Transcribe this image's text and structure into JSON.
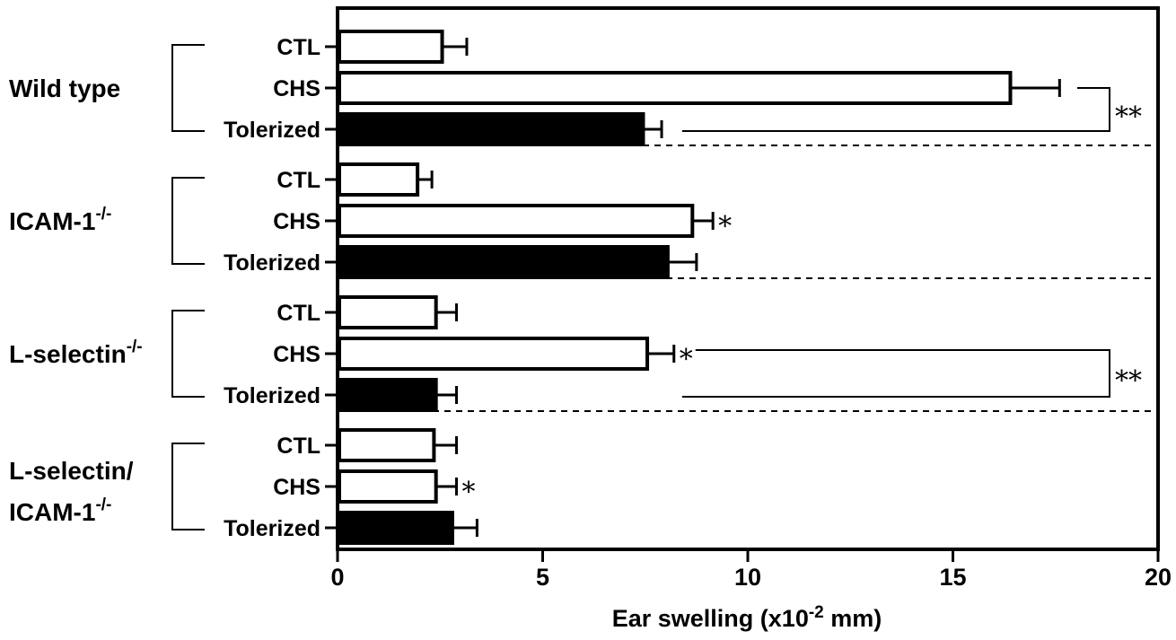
{
  "chart_data": {
    "type": "bar",
    "orientation": "horizontal",
    "xlabel_main": "Ear swelling (x10",
    "xlabel_exp": "-2",
    "xlabel_tail": " mm)",
    "xlim": [
      0,
      20
    ],
    "xticks": [
      "0",
      "5",
      "10",
      "15",
      "20"
    ],
    "xtick_values": [
      0,
      5,
      10,
      15,
      20
    ],
    "grid": false,
    "colors": {
      "CTL": "#ffffff",
      "CHS": "#ffffff",
      "Tolerized": "#000000",
      "stroke": "#000000"
    },
    "groups": [
      {
        "label_main": "Wild type",
        "label_sup": "",
        "label_line2": "",
        "label_line2_sup": "",
        "bars": [
          {
            "condition": "CTL",
            "value": 2.55,
            "error": 0.6,
            "sig": ""
          },
          {
            "condition": "CHS",
            "value": 16.4,
            "error": 1.2,
            "sig": ""
          },
          {
            "condition": "Tolerized",
            "value": 7.45,
            "error": 0.45,
            "sig": ""
          }
        ],
        "bracket": {
          "from": "CHS",
          "to": "Tolerized",
          "label": "**"
        }
      },
      {
        "label_main": "ICAM-1",
        "label_sup": "-/-",
        "label_line2": "",
        "label_line2_sup": "",
        "bars": [
          {
            "condition": "CTL",
            "value": 1.95,
            "error": 0.35,
            "sig": ""
          },
          {
            "condition": "CHS",
            "value": 8.65,
            "error": 0.5,
            "sig": "*"
          },
          {
            "condition": "Tolerized",
            "value": 8.05,
            "error": 0.7,
            "sig": ""
          }
        ],
        "bracket": null
      },
      {
        "label_main": "L-selectin",
        "label_sup": "-/-",
        "label_line2": "",
        "label_line2_sup": "",
        "bars": [
          {
            "condition": "CTL",
            "value": 2.4,
            "error": 0.5,
            "sig": ""
          },
          {
            "condition": "CHS",
            "value": 7.55,
            "error": 0.65,
            "sig": "*"
          },
          {
            "condition": "Tolerized",
            "value": 2.4,
            "error": 0.5,
            "sig": ""
          }
        ],
        "bracket": {
          "from": "CHS",
          "to": "Tolerized",
          "label": "**"
        }
      },
      {
        "label_main": "L-selectin/",
        "label_sup": "",
        "label_line2": "ICAM-1",
        "label_line2_sup": "-/-",
        "bars": [
          {
            "condition": "CTL",
            "value": 2.35,
            "error": 0.55,
            "sig": ""
          },
          {
            "condition": "CHS",
            "value": 2.4,
            "error": 0.5,
            "sig": "*"
          },
          {
            "condition": "Tolerized",
            "value": 2.8,
            "error": 0.6,
            "sig": ""
          }
        ],
        "bracket": null
      }
    ]
  }
}
